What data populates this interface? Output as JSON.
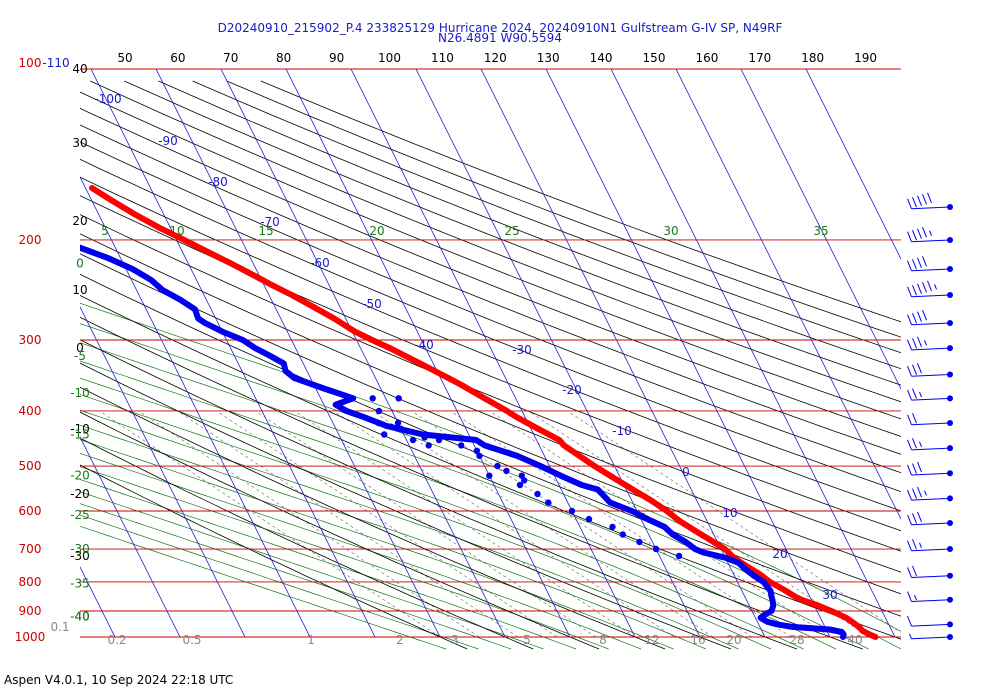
{
  "header": {
    "title_line1": "D20240910_215902_P.4 233825129 Hurricane 2024, 20240910N1 Gulfstream G-IV SP, N49RF",
    "title_line2": "N26.4891 W90.5594"
  },
  "footer": {
    "text": "Aspen V4.0.1, 10 Sep 2024  22:18 UTC"
  },
  "colors": {
    "temperature": "#ff0000",
    "dewpoint": "#0000ee",
    "isobar": "#cc0000",
    "isotherm": "#1a1acc",
    "dry_adiabat": "#000000",
    "moist_adiabat": "#1a7a1a",
    "mixing_ratio": "#1a7a1a",
    "wind": "#0000ee"
  },
  "chart_data": {
    "type": "line",
    "subtype": "skew-t log-p sounding",
    "ylim": [
      1000,
      100
    ],
    "top_temp_axis": [
      "50",
      "60",
      "70",
      "80",
      "90",
      "100",
      "110",
      "120",
      "130",
      "140",
      "150",
      "160",
      "170",
      "180",
      "190"
    ],
    "pressure_labels": [
      {
        "p": 100,
        "label": "100",
        "alt": "-110"
      },
      {
        "p": 200,
        "label": "200"
      },
      {
        "p": 300,
        "label": "300"
      },
      {
        "p": 400,
        "label": "400"
      },
      {
        "p": 500,
        "label": "500"
      },
      {
        "p": 600,
        "label": "600"
      },
      {
        "p": 700,
        "label": "700"
      },
      {
        "p": 800,
        "label": "800"
      },
      {
        "p": 900,
        "label": "900"
      },
      {
        "p": 1000,
        "label": "1000"
      }
    ],
    "altitude_labels": [
      {
        "p": 100,
        "label": "40"
      },
      {
        "p": 135,
        "label": "30"
      },
      {
        "p": 185,
        "label": "20"
      },
      {
        "p": 245,
        "label": "10"
      },
      {
        "p": 310,
        "label": "0"
      },
      {
        "p": 430,
        "label": "-10"
      },
      {
        "p": 560,
        "label": "-20"
      },
      {
        "p": 720,
        "label": "-30"
      },
      {
        "p": 920,
        "label": "-40"
      }
    ],
    "moist_labels": [
      {
        "p": 320,
        "label": "-5"
      },
      {
        "p": 372,
        "label": "-10"
      },
      {
        "p": 440,
        "label": "-15"
      },
      {
        "p": 520,
        "label": "-20"
      },
      {
        "p": 610,
        "label": "-25"
      },
      {
        "p": 700,
        "label": "-30"
      },
      {
        "p": 805,
        "label": "-35"
      },
      {
        "p": 920,
        "label": "-40"
      },
      {
        "p": 220,
        "label": "0"
      }
    ],
    "isotherm_labels": [
      "-100",
      "-90",
      "-80",
      "-70",
      "-60",
      "-50",
      "-40",
      "-30",
      "-20",
      "-10",
      "0",
      "10",
      "20",
      "30"
    ],
    "isotherms": [
      -100,
      -90,
      -80,
      -70,
      -60,
      -50,
      -40,
      -30,
      -20,
      -10,
      0,
      10,
      20,
      30
    ],
    "theta_e_labels": [
      "5",
      "10",
      "15",
      "20",
      "25",
      "30",
      "35"
    ],
    "mixing_ratio_labels": [
      "0.1",
      "0.2",
      "0.5",
      "1",
      "2",
      "3",
      "5",
      "8",
      "12",
      "16",
      "20",
      "28",
      "40"
    ],
    "temperature": {
      "name": "",
      "points": [
        [
          1000,
          27.0
        ],
        [
          990,
          26.3
        ],
        [
          975,
          25.5
        ],
        [
          960,
          25.2
        ],
        [
          950,
          24.9
        ],
        [
          925,
          24.0
        ],
        [
          900,
          22.2
        ],
        [
          880,
          20.6
        ],
        [
          860,
          18.5
        ],
        [
          850,
          17.8
        ],
        [
          825,
          16.5
        ],
        [
          800,
          15.0
        ],
        [
          775,
          14.0
        ],
        [
          750,
          12.6
        ],
        [
          725,
          11.3
        ],
        [
          700,
          10.6
        ],
        [
          680,
          9.4
        ],
        [
          650,
          7.4
        ],
        [
          625,
          5.8
        ],
        [
          600,
          4.6
        ],
        [
          575,
          3.0
        ],
        [
          550,
          1.0
        ],
        [
          525,
          -1.0
        ],
        [
          500,
          -3.1
        ],
        [
          475,
          -5.0
        ],
        [
          460,
          -6.2
        ],
        [
          450,
          -6.5
        ],
        [
          430,
          -8.9
        ],
        [
          410,
          -11.3
        ],
        [
          400,
          -12.3
        ],
        [
          380,
          -14.8
        ],
        [
          360,
          -17.3
        ],
        [
          350,
          -18.8
        ],
        [
          330,
          -22.0
        ],
        [
          310,
          -25.5
        ],
        [
          300,
          -27.6
        ],
        [
          290,
          -29.6
        ],
        [
          275,
          -31.8
        ],
        [
          260,
          -34.5
        ],
        [
          250,
          -36.5
        ],
        [
          240,
          -38.8
        ],
        [
          230,
          -41.0
        ],
        [
          220,
          -43.4
        ],
        [
          210,
          -46.1
        ],
        [
          200,
          -48.8
        ],
        [
          190,
          -51.8
        ],
        [
          180,
          -54.5
        ],
        [
          170,
          -57.0
        ],
        [
          162,
          -59.0
        ]
      ]
    },
    "dewpoint": {
      "name": "",
      "points": [
        [
          1000,
          22.0
        ],
        [
          990,
          22.3
        ],
        [
          980,
          22.2
        ],
        [
          970,
          20.5
        ],
        [
          960,
          15.0
        ],
        [
          950,
          12.8
        ],
        [
          940,
          11.5
        ],
        [
          925,
          10.8
        ],
        [
          910,
          12.0
        ],
        [
          900,
          13.0
        ],
        [
          880,
          13.7
        ],
        [
          860,
          14.0
        ],
        [
          850,
          14.1
        ],
        [
          830,
          14.4
        ],
        [
          800,
          14.0
        ],
        [
          780,
          13.0
        ],
        [
          760,
          12.2
        ],
        [
          740,
          11.6
        ],
        [
          725,
          10.0
        ],
        [
          710,
          7.0
        ],
        [
          700,
          6.0
        ],
        [
          680,
          5.1
        ],
        [
          660,
          3.7
        ],
        [
          640,
          3.0
        ],
        [
          620,
          1.0
        ],
        [
          600,
          -0.8
        ],
        [
          580,
          -3.5
        ],
        [
          565,
          -3.9
        ],
        [
          550,
          -4.4
        ],
        [
          540,
          -6.5
        ],
        [
          520,
          -9.0
        ],
        [
          500,
          -11.4
        ],
        [
          480,
          -14.2
        ],
        [
          460,
          -18.4
        ],
        [
          450,
          -19.3
        ],
        [
          440,
          -27.0
        ],
        [
          425,
          -32.0
        ],
        [
          410,
          -34.8
        ],
        [
          400,
          -37.0
        ],
        [
          390,
          -38.2
        ],
        [
          380,
          -35.0
        ],
        [
          365,
          -38.8
        ],
        [
          350,
          -42.5
        ],
        [
          340,
          -43.3
        ],
        [
          330,
          -43.0
        ],
        [
          320,
          -44.5
        ],
        [
          310,
          -46.2
        ],
        [
          300,
          -47.5
        ],
        [
          290,
          -50.0
        ],
        [
          280,
          -52.0
        ],
        [
          275,
          -52.7
        ],
        [
          265,
          -52.5
        ],
        [
          255,
          -54.0
        ],
        [
          245,
          -56.0
        ],
        [
          235,
          -57.0
        ],
        [
          225,
          -59.0
        ],
        [
          215,
          -62.0
        ],
        [
          205,
          -66.0
        ],
        [
          198,
          -68.0
        ]
      ]
    },
    "dewpoint_scatter": [
      [
        380,
        -32
      ],
      [
        380,
        -28
      ],
      [
        400,
        -32
      ],
      [
        420,
        -30
      ],
      [
        430,
        -30
      ],
      [
        450,
        -25
      ],
      [
        460,
        -22
      ],
      [
        470,
        -20
      ],
      [
        480,
        -20
      ],
      [
        500,
        -18
      ],
      [
        510,
        -17
      ],
      [
        520,
        -15
      ],
      [
        530,
        -15
      ],
      [
        450,
        -29
      ],
      [
        445,
        -27
      ],
      [
        420,
        -33
      ],
      [
        440,
        -33
      ],
      [
        460,
        -27
      ],
      [
        520,
        -20
      ],
      [
        540,
        -16
      ],
      [
        560,
        -14
      ],
      [
        580,
        -13
      ],
      [
        600,
        -10
      ],
      [
        620,
        -8
      ],
      [
        640,
        -5
      ],
      [
        660,
        -4
      ],
      [
        680,
        -2
      ],
      [
        700,
        0
      ],
      [
        720,
        3
      ]
    ],
    "winds": [
      {
        "p": 175,
        "speed_kt": 50
      },
      {
        "p": 200,
        "speed_kt": 45
      },
      {
        "p": 225,
        "speed_kt": 40
      },
      {
        "p": 250,
        "speed_kt": 55
      },
      {
        "p": 280,
        "speed_kt": 40
      },
      {
        "p": 310,
        "speed_kt": 35
      },
      {
        "p": 345,
        "speed_kt": 30
      },
      {
        "p": 380,
        "speed_kt": 25
      },
      {
        "p": 420,
        "speed_kt": 20
      },
      {
        "p": 465,
        "speed_kt": 25
      },
      {
        "p": 515,
        "speed_kt": 30
      },
      {
        "p": 570,
        "speed_kt": 35
      },
      {
        "p": 630,
        "speed_kt": 30
      },
      {
        "p": 700,
        "speed_kt": 25
      },
      {
        "p": 780,
        "speed_kt": 20
      },
      {
        "p": 860,
        "speed_kt": 15
      },
      {
        "p": 950,
        "speed_kt": 10
      },
      {
        "p": 1000,
        "speed_kt": 5
      }
    ]
  }
}
